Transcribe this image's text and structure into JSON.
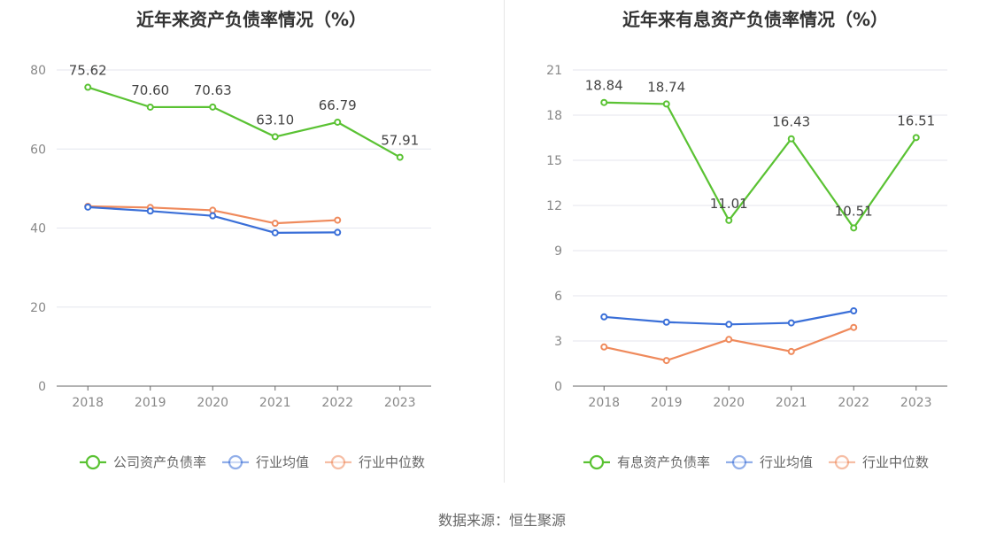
{
  "source_label": "数据来源：恒生聚源",
  "chart_data": [
    {
      "type": "line",
      "title": "近年来资产负债率情况（%）",
      "categories": [
        "2018",
        "2019",
        "2020",
        "2021",
        "2022",
        "2023"
      ],
      "ylim": [
        0,
        80
      ],
      "yticks": [
        0,
        20,
        40,
        60,
        80
      ],
      "grid": true,
      "legend_position": "bottom",
      "series": [
        {
          "name": "公司资产负债率",
          "color": "#5ac233",
          "values": [
            75.62,
            70.6,
            70.63,
            63.1,
            66.79,
            57.91
          ],
          "labels": [
            "75.62",
            "70.60",
            "70.63",
            "63.10",
            "66.79",
            "57.91"
          ]
        },
        {
          "name": "行业均值",
          "color": "#3a6fd8",
          "values": [
            45.3,
            44.3,
            43.1,
            38.8,
            38.9,
            null
          ]
        },
        {
          "name": "行业中位数",
          "color": "#ef8a5c",
          "values": [
            45.5,
            45.2,
            44.5,
            41.2,
            42.0,
            null
          ]
        }
      ]
    },
    {
      "type": "line",
      "title": "近年来有息资产负债率情况（%）",
      "categories": [
        "2018",
        "2019",
        "2020",
        "2021",
        "2022",
        "2023"
      ],
      "ylim": [
        0,
        21
      ],
      "yticks": [
        0,
        3,
        6,
        9,
        12,
        15,
        18,
        21
      ],
      "grid": true,
      "legend_position": "bottom",
      "series": [
        {
          "name": "有息资产负债率",
          "color": "#5ac233",
          "values": [
            18.84,
            18.74,
            11.01,
            16.43,
            10.51,
            16.51
          ],
          "labels": [
            "18.84",
            "18.74",
            "11.01",
            "16.43",
            "10.51",
            "16.51"
          ]
        },
        {
          "name": "行业均值",
          "color": "#3a6fd8",
          "values": [
            4.6,
            4.25,
            4.1,
            4.2,
            5.0,
            null
          ]
        },
        {
          "name": "行业中位数",
          "color": "#ef8a5c",
          "values": [
            2.6,
            1.7,
            3.1,
            2.3,
            3.9,
            null
          ]
        }
      ]
    }
  ]
}
